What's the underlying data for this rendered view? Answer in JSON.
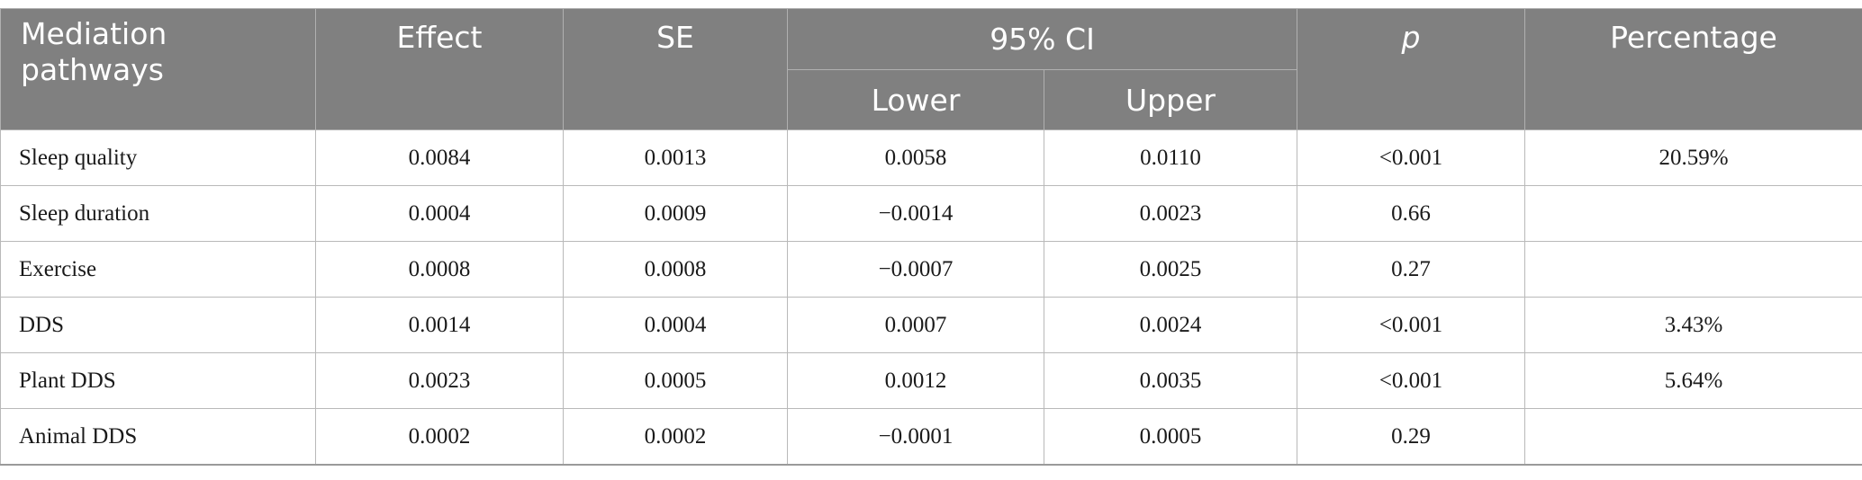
{
  "headers": {
    "pathway": "Mediation pathways",
    "effect": "Effect",
    "se": "SE",
    "ci": "95% CI",
    "lower": "Lower",
    "upper": "Upper",
    "p": "p",
    "percentage": "Percentage"
  },
  "rows": [
    {
      "pathway": "Sleep quality",
      "effect": "0.0084",
      "se": "0.0013",
      "lower": "0.0058",
      "upper": "0.0110",
      "p": "<0.001",
      "percentage": "20.59%"
    },
    {
      "pathway": "Sleep duration",
      "effect": "0.0004",
      "se": "0.0009",
      "lower": "−0.0014",
      "upper": "0.0023",
      "p": "0.66",
      "percentage": ""
    },
    {
      "pathway": "Exercise",
      "effect": "0.0008",
      "se": "0.0008",
      "lower": "−0.0007",
      "upper": "0.0025",
      "p": "0.27",
      "percentage": ""
    },
    {
      "pathway": "DDS",
      "effect": "0.0014",
      "se": "0.0004",
      "lower": "0.0007",
      "upper": "0.0024",
      "p": "<0.001",
      "percentage": "3.43%"
    },
    {
      "pathway": "Plant DDS",
      "effect": "0.0023",
      "se": "0.0005",
      "lower": "0.0012",
      "upper": "0.0035",
      "p": "<0.001",
      "percentage": "5.64%"
    },
    {
      "pathway": "Animal DDS",
      "effect": "0.0002",
      "se": "0.0002",
      "lower": "−0.0001",
      "upper": "0.0005",
      "p": "0.29",
      "percentage": ""
    }
  ]
}
